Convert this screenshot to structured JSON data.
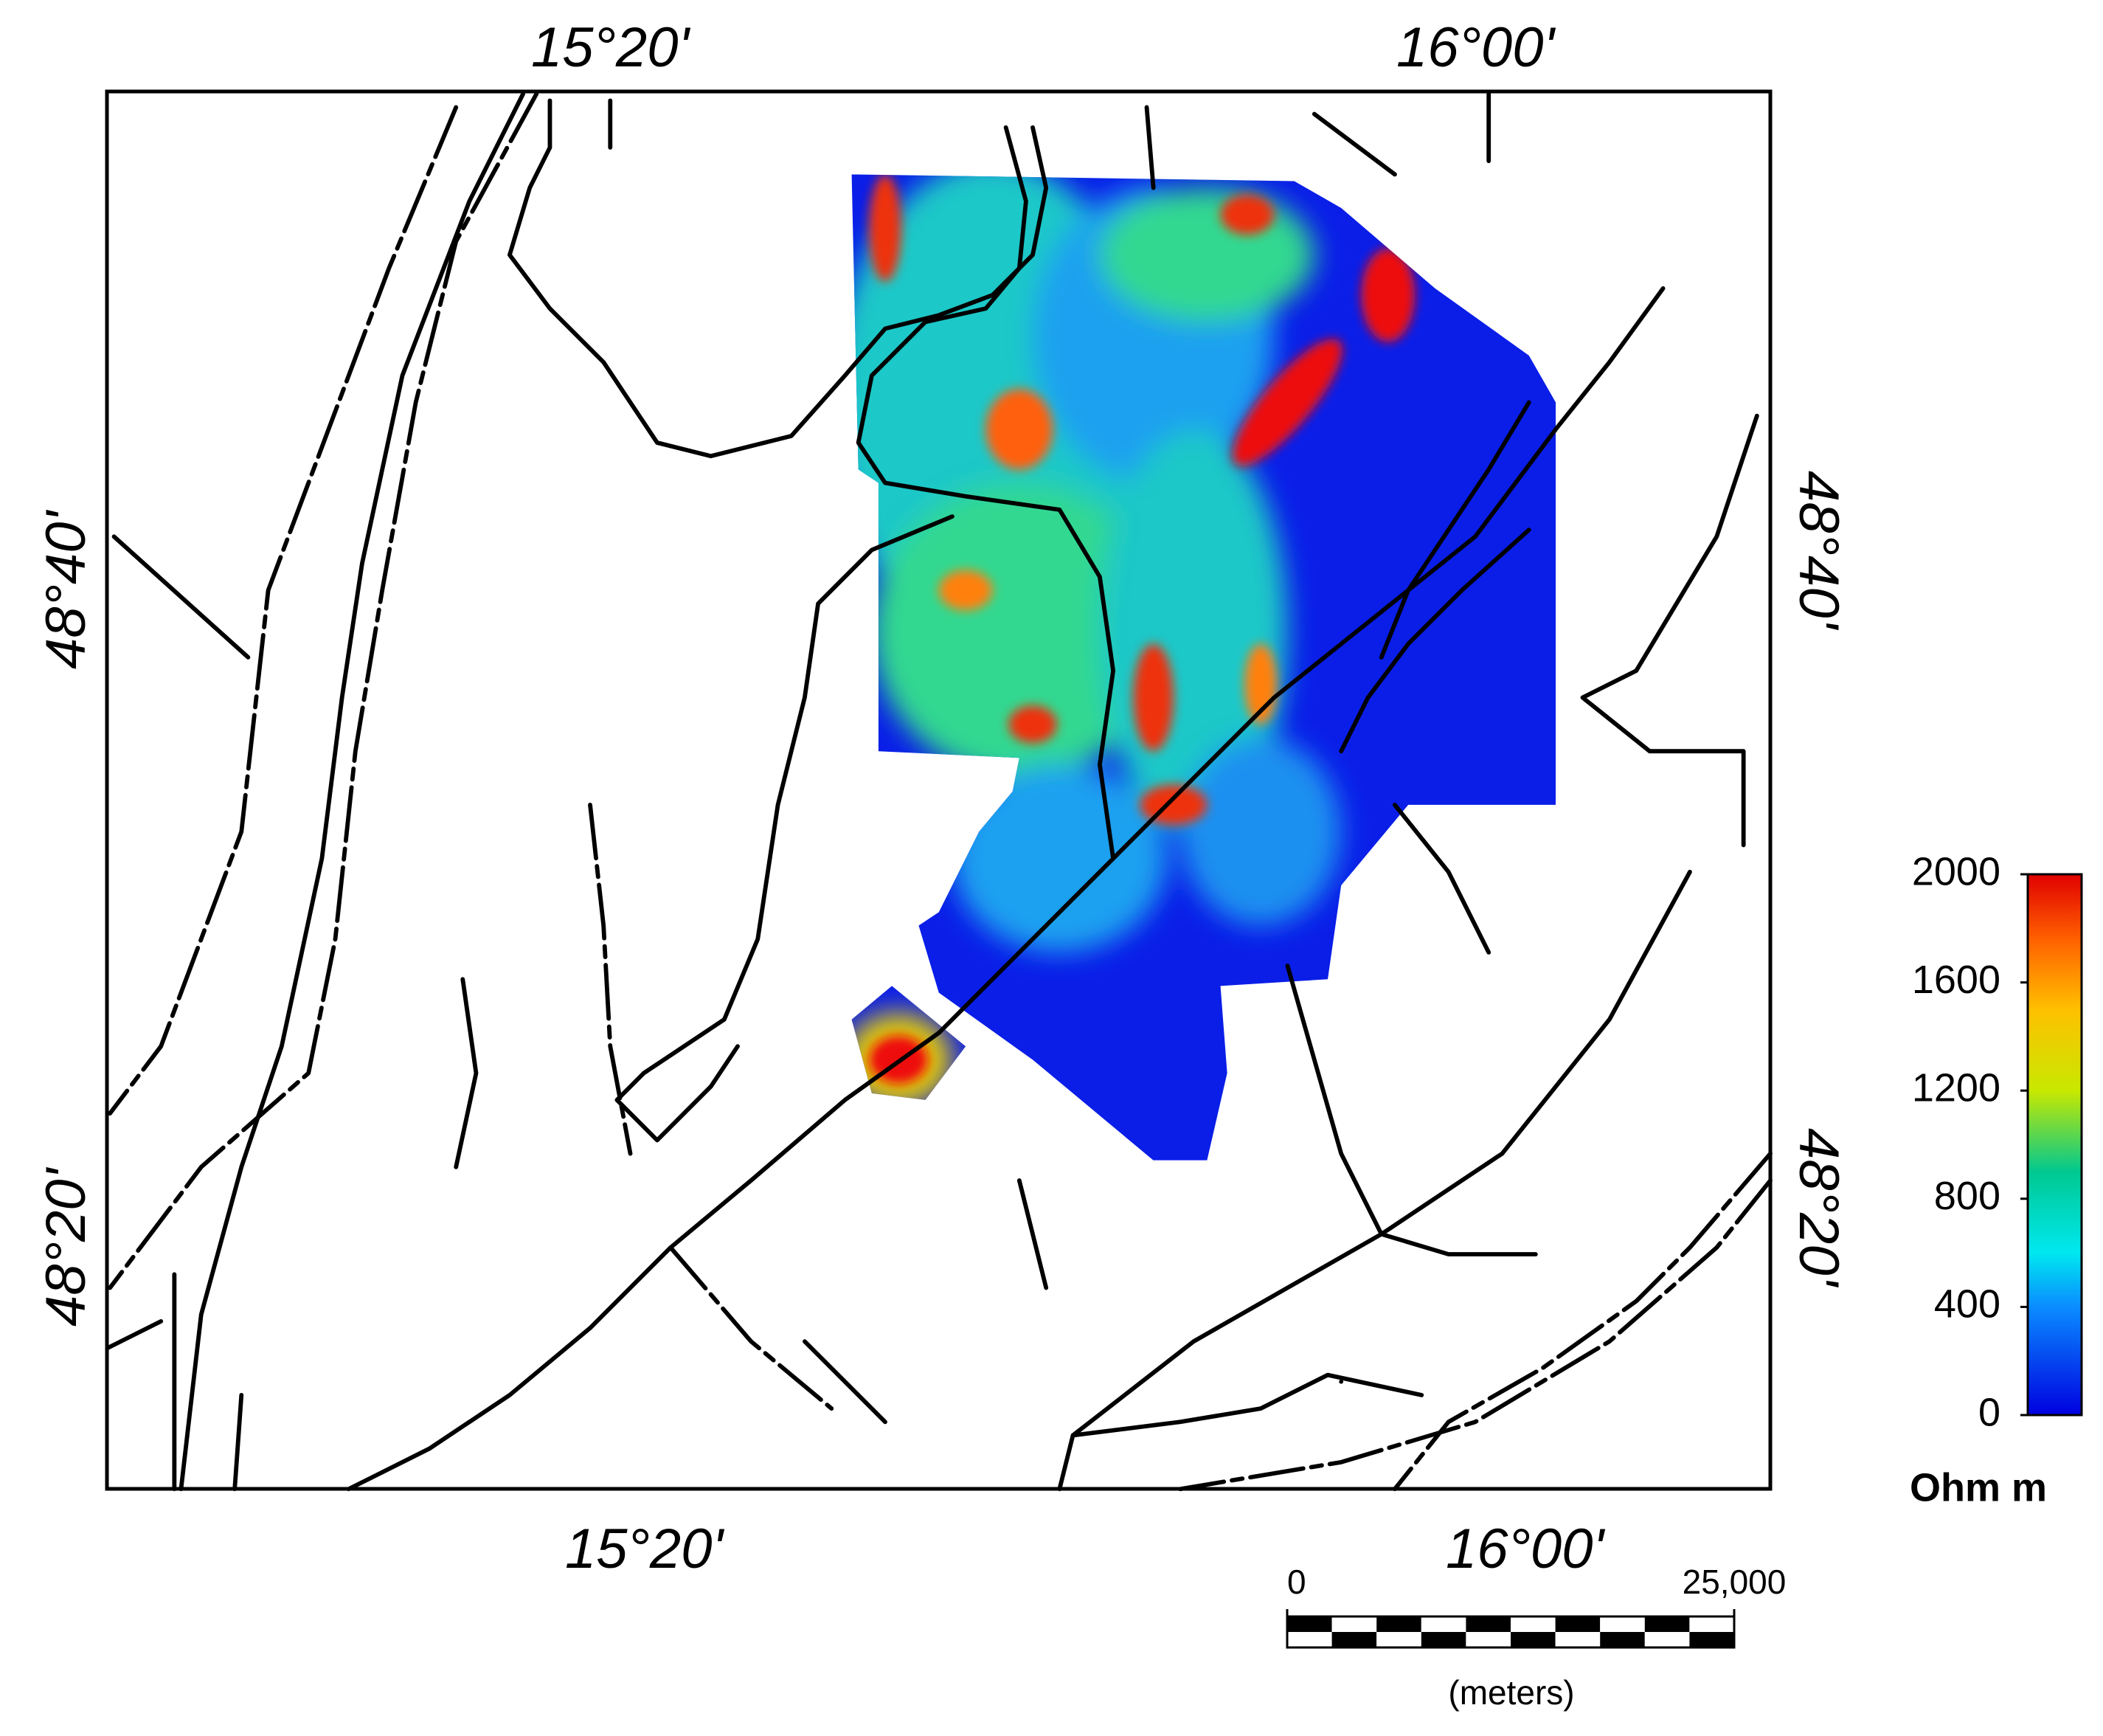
{
  "axes": {
    "top": [
      "15°20'",
      "16°00'"
    ],
    "bottom": [
      "15°20'",
      "16°00'"
    ],
    "left": [
      "48°40'",
      "48°20'"
    ],
    "right": [
      "48°40'",
      "48°20'"
    ]
  },
  "colorbar": {
    "label": "Ohm m",
    "lim": [
      0,
      2000
    ],
    "ticks": [
      0,
      400,
      800,
      1200,
      1600,
      2000
    ]
  },
  "scale_bar": {
    "lim": [
      0,
      25000
    ],
    "ticks": [
      0,
      {
        "value": 25000,
        "label": "25,000"
      }
    ],
    "unit": "(meters)"
  }
}
